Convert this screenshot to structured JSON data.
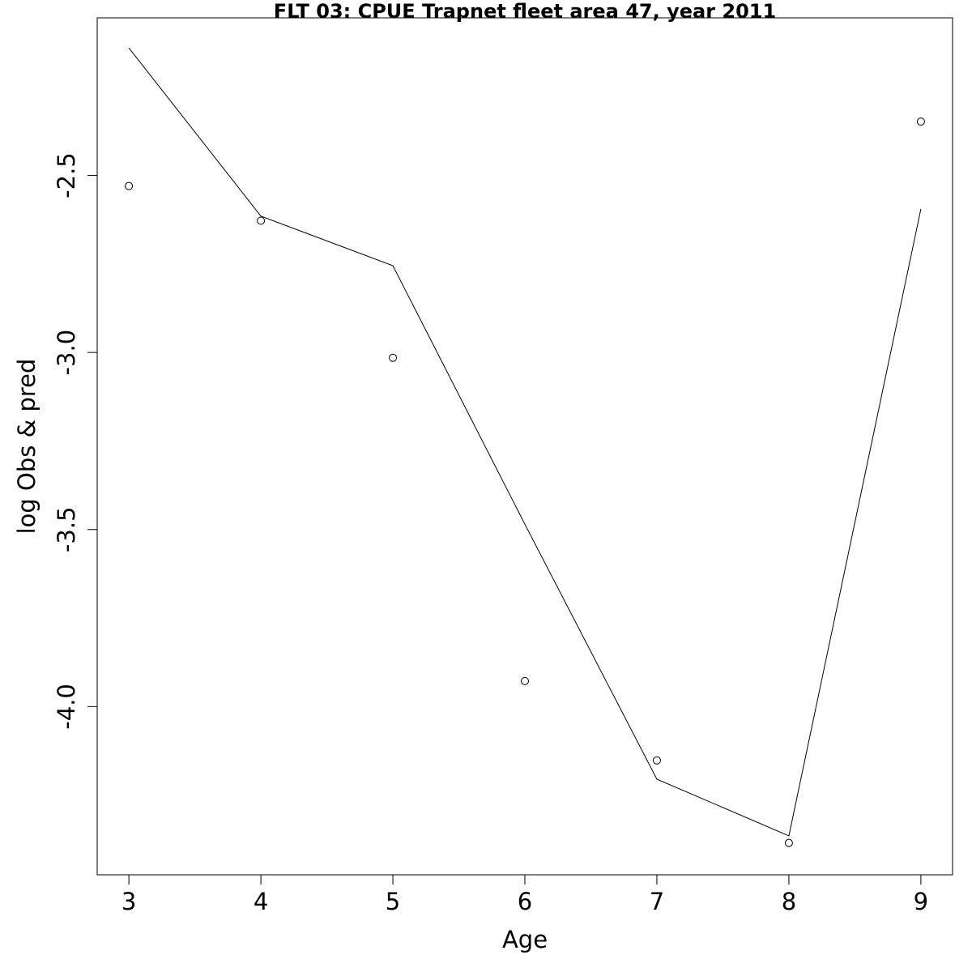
{
  "chart_data": {
    "type": "line",
    "title": "FLT 03: CPUE Trapnet fleet area 47, year 2011",
    "xlabel": "Age",
    "ylabel": "log Obs & pred",
    "xlim": [
      2.76,
      9.24
    ],
    "ylim": [
      -4.475,
      -2.055
    ],
    "x_ticks": [
      "3",
      "4",
      "5",
      "6",
      "7",
      "8",
      "9"
    ],
    "y_ticks": [
      "-2.5",
      "-3.0",
      "-3.5",
      "-4.0"
    ],
    "grid": false,
    "series": [
      {
        "x": [
          3,
          4,
          5,
          6,
          7,
          8,
          9
        ],
        "values": [
          -2.14,
          -2.615,
          -2.755,
          -3.485,
          -4.205,
          -4.365,
          -2.595
        ],
        "style": "line",
        "color": "#000000"
      },
      {
        "x": [
          3,
          4,
          5,
          6,
          7,
          8,
          9
        ],
        "values": [
          -2.53,
          -2.628,
          -3.015,
          -3.928,
          -4.152,
          -4.385,
          -2.348
        ],
        "style": "points",
        "marker": "open-circle",
        "color": "#000000"
      }
    ]
  }
}
